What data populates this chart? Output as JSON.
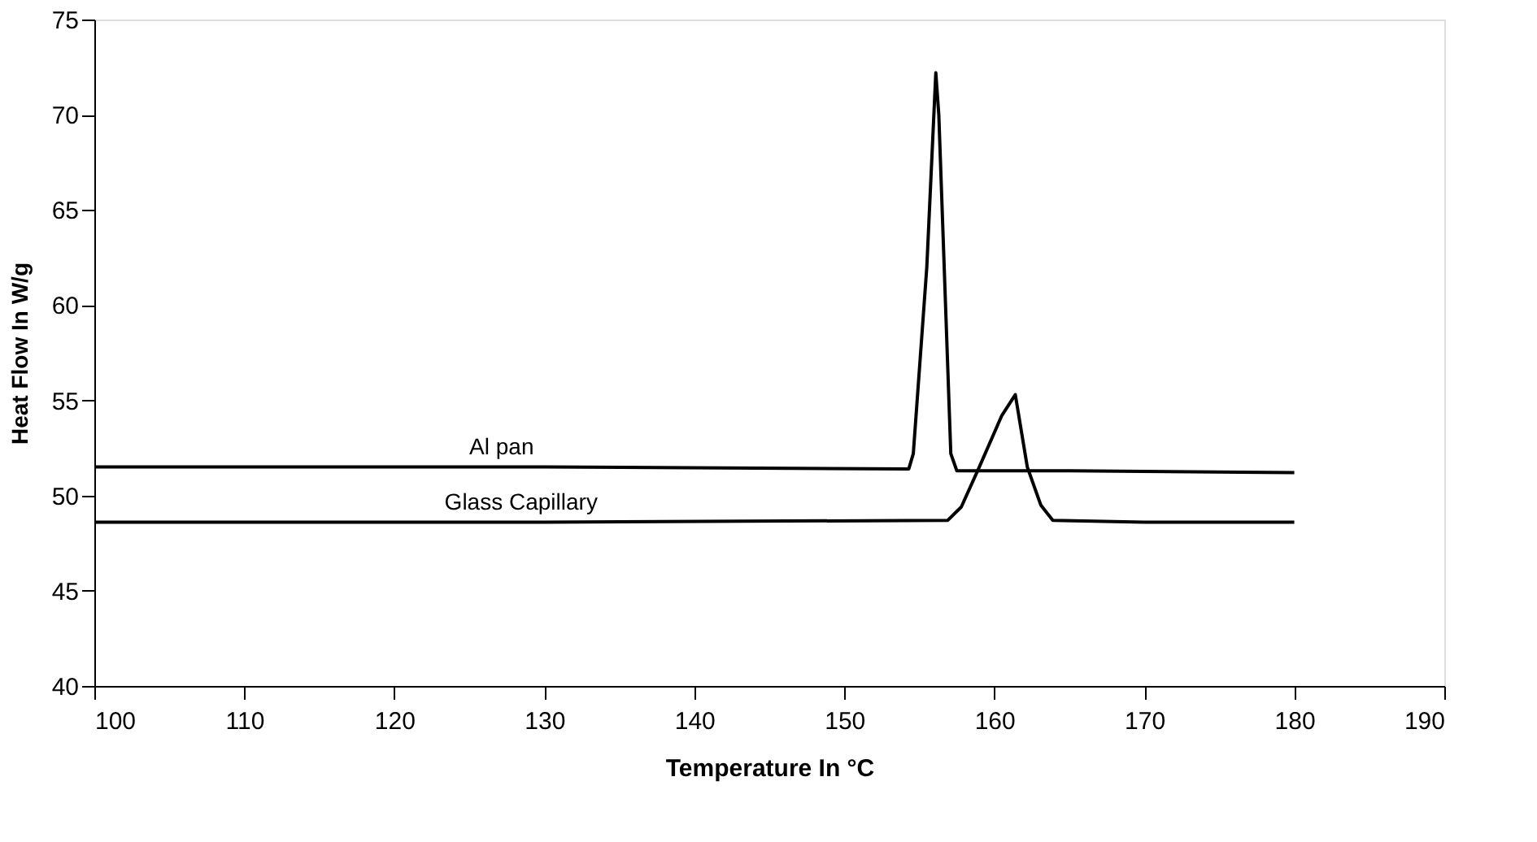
{
  "chart_data": {
    "type": "line",
    "xlabel": "Temperature In °C",
    "ylabel": "Heat Flow In W/g",
    "xlim": [
      100,
      190
    ],
    "xticks": [
      100,
      110,
      120,
      130,
      140,
      150,
      160,
      170,
      180,
      190
    ],
    "ylim": [
      40,
      75
    ],
    "yticks": [
      40,
      45,
      50,
      55,
      60,
      65,
      70,
      75
    ],
    "grid": false,
    "legend": false,
    "marker": "none",
    "line_style": "solid",
    "series": [
      {
        "name": "Al pan",
        "color": "#000000",
        "x": [
          100,
          130,
          154.3,
          154.6,
          155.5,
          156.1,
          156.3,
          157.1,
          157.5,
          165,
          180
        ],
        "values": [
          51.5,
          51.5,
          51.4,
          52.2,
          62,
          72.2,
          70,
          52.2,
          51.3,
          51.3,
          51.2
        ]
      },
      {
        "name": "Glass Capillary",
        "color": "#000000",
        "x": [
          100,
          130,
          156.9,
          157.8,
          159,
          160.5,
          161.4,
          162.2,
          163.1,
          163.9,
          170,
          180
        ],
        "values": [
          48.6,
          48.6,
          48.7,
          49.4,
          51.5,
          54.2,
          55.3,
          51.5,
          49.5,
          48.7,
          48.6,
          48.6
        ]
      }
    ]
  }
}
